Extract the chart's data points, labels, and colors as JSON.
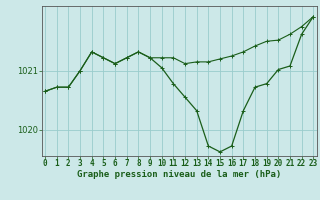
{
  "title": "Graphe pression niveau de la mer (hPa)",
  "background_color": "#cce8e8",
  "grid_color": "#99cccc",
  "line_color": "#1a5e1a",
  "x_labels": [
    "0",
    "1",
    "2",
    "3",
    "4",
    "5",
    "6",
    "7",
    "8",
    "9",
    "10",
    "11",
    "12",
    "13",
    "14",
    "15",
    "16",
    "17",
    "18",
    "19",
    "20",
    "21",
    "22",
    "23"
  ],
  "ylim": [
    1019.55,
    1022.1
  ],
  "yticks": [
    1020,
    1021
  ],
  "series1": [
    1020.65,
    1020.72,
    1020.72,
    1021.0,
    1021.32,
    1021.22,
    1021.12,
    1021.22,
    1021.32,
    1021.22,
    1021.22,
    1021.22,
    1021.12,
    1021.15,
    1021.15,
    1021.2,
    1021.25,
    1021.32,
    1021.42,
    1021.5,
    1021.52,
    1021.62,
    1021.75,
    1021.92
  ],
  "series2": [
    1020.65,
    1020.72,
    1020.72,
    1021.0,
    1021.32,
    1021.22,
    1021.12,
    1021.22,
    1021.32,
    1021.22,
    1021.05,
    1020.78,
    1020.55,
    1020.32,
    1019.72,
    1019.62,
    1019.72,
    1020.32,
    1020.72,
    1020.78,
    1021.02,
    1021.08,
    1021.62,
    1021.92
  ],
  "xlabel_fontsize": 5.5,
  "ylabel_fontsize": 6.0,
  "title_fontsize": 6.5,
  "spine_color": "#555555",
  "figsize": [
    3.2,
    2.0
  ],
  "dpi": 100
}
